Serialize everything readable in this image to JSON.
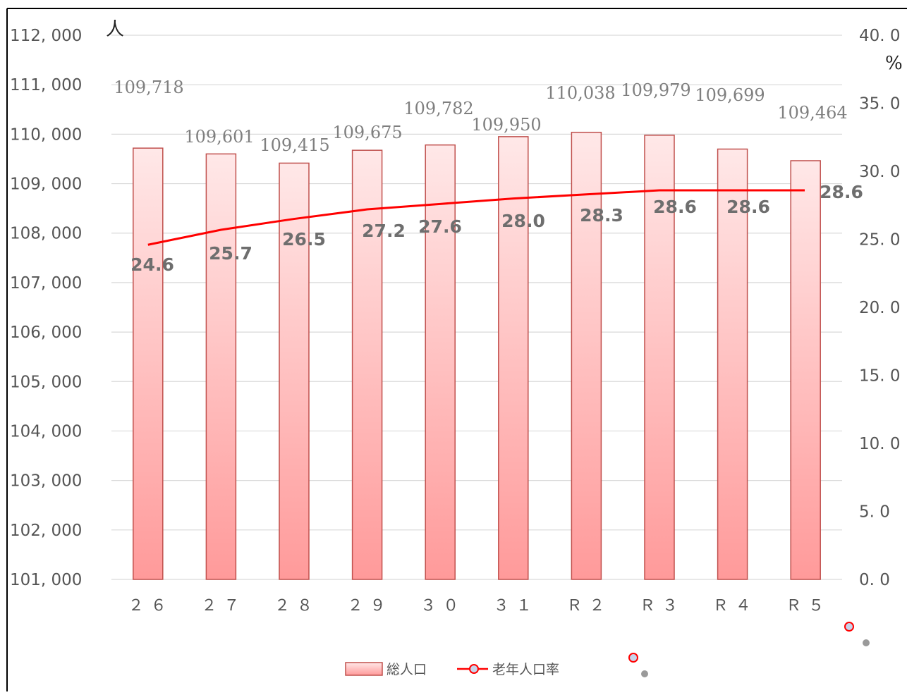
{
  "chart_data": {
    "type": "bar",
    "categories": [
      "２６",
      "２７",
      "２８",
      "２９",
      "３０",
      "３１",
      "Ｒ２",
      "Ｒ３",
      "Ｒ４",
      "Ｒ５"
    ],
    "series": [
      {
        "name": "総人口",
        "type": "bar",
        "axis": "left",
        "values": [
          109718,
          109601,
          109415,
          109675,
          109782,
          109950,
          110038,
          109979,
          109699,
          109464
        ],
        "labels": [
          "109,718",
          "109,601",
          "109,415",
          "109,675",
          "109,782",
          "109,950",
          "110,038",
          "109,979",
          "109,699",
          "109,464"
        ],
        "color": "#ff9a9a"
      },
      {
        "name": "老年人口率",
        "type": "line",
        "axis": "right",
        "values": [
          24.6,
          25.7,
          26.5,
          27.2,
          27.6,
          28.0,
          28.3,
          28.6,
          28.6,
          28.6
        ],
        "labels": [
          "24.6",
          "25.7",
          "26.5",
          "27.2",
          "27.6",
          "28.0",
          "28.3",
          "28.6",
          "28.6",
          "28.6"
        ],
        "color": "#ff0000"
      }
    ],
    "y_left": {
      "unit": "人",
      "ylim": [
        101000,
        112000
      ],
      "ticks": [
        "101, 000",
        "102, 000",
        "103, 000",
        "104, 000",
        "105, 000",
        "106, 000",
        "107, 000",
        "108, 000",
        "109, 000",
        "110, 000",
        "111, 000",
        "112, 000"
      ]
    },
    "y_right": {
      "unit": "%",
      "ylim": [
        0,
        40
      ],
      "ticks": [
        "0. 0",
        "5. 0",
        "10. 0",
        "15. 0",
        "20. 0",
        "25. 0",
        "30. 0",
        "35. 0",
        "40. 0"
      ]
    },
    "grid": true,
    "legend": "bottom"
  },
  "colors": {
    "bar_top": "#ffe8e8",
    "bar_bottom": "#ff9a9a",
    "bar_border": "#c0504d",
    "line": "#ff0000",
    "grid": "#d9d9d9"
  }
}
